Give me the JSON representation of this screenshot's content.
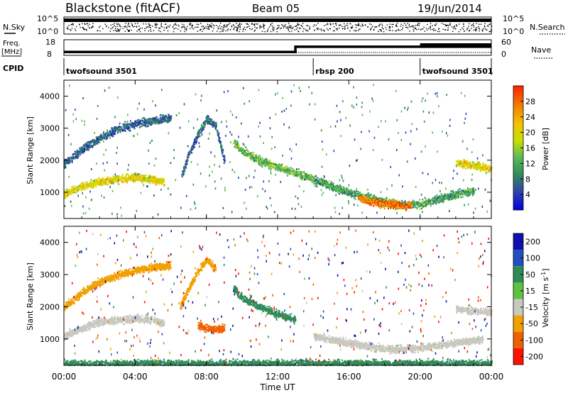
{
  "header": {
    "station": "Blackstone (fitACF)",
    "beam": "Beam 05",
    "date": "19/Jun/2014"
  },
  "aux_panels": {
    "nsky_label": "N.Sky",
    "nsearch_label": "N.Search",
    "freq_label_1": "Freq.",
    "freq_label_2": "[MHz]",
    "nave_label": "Nave",
    "cpid_label": "CPID",
    "noise_ticks": [
      "10^5",
      "10^0"
    ],
    "freq_ticks": [
      "18",
      "8"
    ],
    "nave_ticks": [
      "60",
      "0"
    ]
  },
  "cpid_segments": [
    {
      "label": "twofsound 3501",
      "start_hour": 0,
      "end_hour": 14.0
    },
    {
      "label": "rbsp 200",
      "start_hour": 14.0,
      "end_hour": 20.0
    },
    {
      "label": "twofsound 3501",
      "start_hour": 20.0,
      "end_hour": 24.0
    }
  ],
  "freq_series": {
    "hours": [
      0,
      13.0,
      13.0,
      24
    ],
    "freq_mhz": [
      10.2,
      10.2,
      13.5,
      13.5
    ]
  },
  "chart_data": [
    {
      "type": "heatmap",
      "name": "power",
      "ylabel": "Slant Range [km]",
      "xlabel": "Time UT",
      "xlim_hours": [
        0,
        24
      ],
      "x_tick_labels": [
        "00:00",
        "04:00",
        "08:00",
        "12:00",
        "16:00",
        "20:00",
        "00:00"
      ],
      "x_ticks_hours": [
        0,
        4,
        8,
        12,
        16,
        20,
        24
      ],
      "ylim_km": [
        180,
        4500
      ],
      "y_ticks": [
        1000,
        2000,
        3000,
        4000
      ],
      "colorbar_label": "Power [dB]",
      "colorbar_ticks": [
        4,
        8,
        12,
        16,
        20,
        24,
        28
      ],
      "colorbar_range": [
        0,
        32
      ],
      "colors": [
        "#0000dd",
        "#3040b0",
        "#2e8b57",
        "#5ab85a",
        "#c8e000",
        "#f5c000",
        "#f08000",
        "#ff2000"
      ],
      "echo_bands": [
        {
          "hours": [
            0,
            1,
            2,
            3,
            4,
            5,
            5.6
          ],
          "range_km": [
            950,
            1200,
            1350,
            1430,
            1480,
            1420,
            1350
          ],
          "power_db": 20
        },
        {
          "hours": [
            0,
            1,
            2,
            3,
            4,
            5,
            6
          ],
          "range_km": [
            1900,
            2350,
            2700,
            3000,
            3150,
            3250,
            3350
          ],
          "power_db": 8
        },
        {
          "hours": [
            6.6,
            7,
            7.5,
            8,
            8.5,
            9
          ],
          "range_km": [
            1550,
            2200,
            2800,
            3300,
            3100,
            2000
          ],
          "power_db": 8
        },
        {
          "hours": [
            9.5,
            10,
            11,
            12,
            13,
            14
          ],
          "range_km": [
            2600,
            2300,
            2000,
            1800,
            1600,
            1450
          ],
          "power_db": 14
        },
        {
          "hours": [
            14,
            15,
            16,
            17,
            18,
            19,
            20,
            21,
            22,
            23
          ],
          "range_km": [
            1400,
            1200,
            1000,
            850,
            700,
            620,
            650,
            800,
            950,
            1050
          ],
          "power_db": 12
        },
        {
          "hours": [
            16.5,
            17,
            17.5,
            18,
            18.5,
            19,
            19.5
          ],
          "range_km": [
            830,
            760,
            700,
            660,
            630,
            610,
            620
          ],
          "power_db": 26
        },
        {
          "hours": [
            22,
            22.5,
            23,
            23.5,
            24
          ],
          "range_km": [
            1950,
            1900,
            1850,
            1800,
            1750
          ],
          "power_db": 20
        }
      ]
    },
    {
      "type": "heatmap",
      "name": "velocity",
      "ylabel": "Slant Range [km]",
      "xlabel": "Time UT",
      "xlim_hours": [
        0,
        24
      ],
      "x_tick_labels": [
        "00:00",
        "04:00",
        "08:00",
        "12:00",
        "16:00",
        "20:00",
        "00:00"
      ],
      "x_ticks_hours": [
        0,
        4,
        8,
        12,
        16,
        20,
        24
      ],
      "ylim_km": [
        180,
        4500
      ],
      "y_ticks": [
        1000,
        2000,
        3000,
        4000
      ],
      "colorbar_label": "Velocity [m s-1]",
      "colorbar_ticks": [
        200,
        100,
        50,
        15,
        -15,
        -50,
        -100,
        -200
      ],
      "colors": [
        "#1010b0",
        "#2050c0",
        "#2e8b57",
        "#60c040",
        "#c8c8c0",
        "#f0a000",
        "#f06000",
        "#ff1000"
      ],
      "echo_bands": [
        {
          "hours": [
            0,
            1,
            2,
            3,
            4,
            5,
            5.6
          ],
          "range_km": [
            1100,
            1350,
            1550,
            1600,
            1650,
            1600,
            1500
          ],
          "velocity_ms": 0
        },
        {
          "hours": [
            0,
            1,
            2,
            3,
            4,
            5,
            6
          ],
          "range_km": [
            2000,
            2450,
            2800,
            3000,
            3150,
            3250,
            3300
          ],
          "velocity_ms": -60
        },
        {
          "hours": [
            6.5,
            7,
            7.5,
            8,
            8.5
          ],
          "range_km": [
            2000,
            2600,
            3100,
            3500,
            3200
          ],
          "velocity_ms": -60
        },
        {
          "hours": [
            7.5,
            8,
            8.5,
            9
          ],
          "range_km": [
            1450,
            1350,
            1300,
            1400
          ],
          "velocity_ms": -100
        },
        {
          "hours": [
            9.5,
            10,
            11,
            12,
            13
          ],
          "range_km": [
            2600,
            2300,
            2000,
            1800,
            1600
          ],
          "velocity_ms": 60
        },
        {
          "hours": [
            14,
            16,
            18,
            20,
            22,
            23.5
          ],
          "range_km": [
            1100,
            900,
            700,
            750,
            900,
            1000
          ],
          "velocity_ms": 0
        },
        {
          "hours": [
            22,
            23,
            24
          ],
          "range_km": [
            1950,
            1900,
            1850
          ],
          "velocity_ms": 0
        },
        {
          "hours": [
            0,
            6,
            12,
            18,
            24
          ],
          "range_km": [
            230,
            240,
            250,
            250,
            240
          ],
          "velocity_ms": 60
        }
      ]
    }
  ]
}
